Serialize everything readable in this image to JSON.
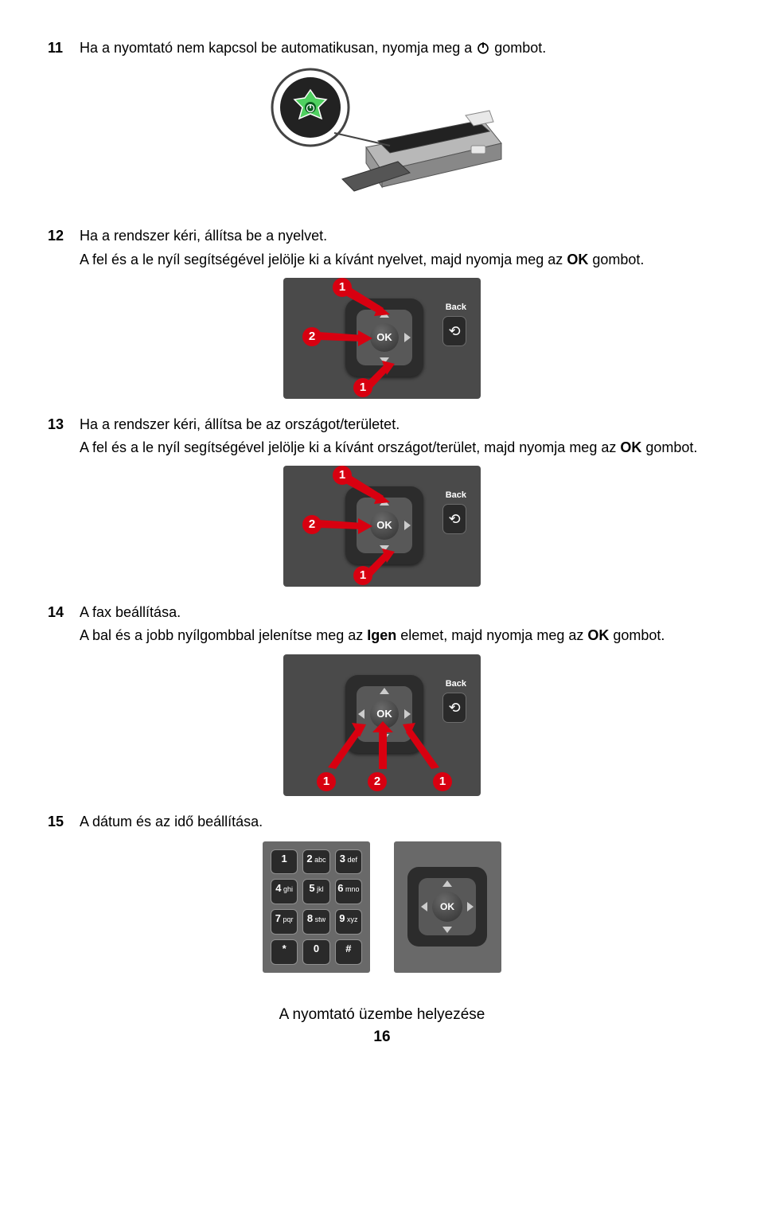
{
  "steps": {
    "s11": {
      "num": "11",
      "text_a": "Ha a nyomtató nem kapcsol be automatikusan, nyomja meg a ",
      "text_b": " gombot."
    },
    "s12": {
      "num": "12",
      "text": "Ha a rendszer kéri, állítsa be a nyelvet.",
      "sub_a": "A fel és a le nyíl segítségével jelölje ki a kívánt nyelvet, majd nyomja meg az ",
      "sub_bold": "OK",
      "sub_b": " gombot."
    },
    "s13": {
      "num": "13",
      "text": "Ha a rendszer kéri, állítsa be az országot/területet.",
      "sub_a": "A fel és a le nyíl segítségével jelölje ki a kívánt országot/terület, majd nyomja meg az ",
      "sub_bold": "OK",
      "sub_b": " gombot."
    },
    "s14": {
      "num": "14",
      "text": "A fax beállítása.",
      "sub_a": "A bal és a jobb nyílgombbal jelenítse meg az ",
      "sub_bold1": "Igen",
      "sub_mid": " elemet, majd nyomja meg az ",
      "sub_bold2": "OK",
      "sub_b": " gombot."
    },
    "s15": {
      "num": "15",
      "text": "A dátum és az idő beállítása."
    }
  },
  "panel": {
    "back_label": "Back",
    "ok_label": "OK",
    "markers": {
      "m1": "1",
      "m2": "2"
    }
  },
  "keypad": {
    "keys": [
      {
        "big": "1",
        "sub": ""
      },
      {
        "big": "2",
        "sub": "abc"
      },
      {
        "big": "3",
        "sub": "def"
      },
      {
        "big": "4",
        "sub": "ghi"
      },
      {
        "big": "5",
        "sub": "jkl"
      },
      {
        "big": "6",
        "sub": "mno"
      },
      {
        "big": "7",
        "sub": "pqr"
      },
      {
        "big": "8",
        "sub": "stw"
      },
      {
        "big": "9",
        "sub": "xyz"
      },
      {
        "big": "*",
        "sub": ""
      },
      {
        "big": "0",
        "sub": ""
      },
      {
        "big": "#",
        "sub": ""
      }
    ]
  },
  "footer": {
    "title": "A nyomtató üzembe helyezése",
    "page": "16"
  },
  "colors": {
    "marker": "#d80010"
  }
}
